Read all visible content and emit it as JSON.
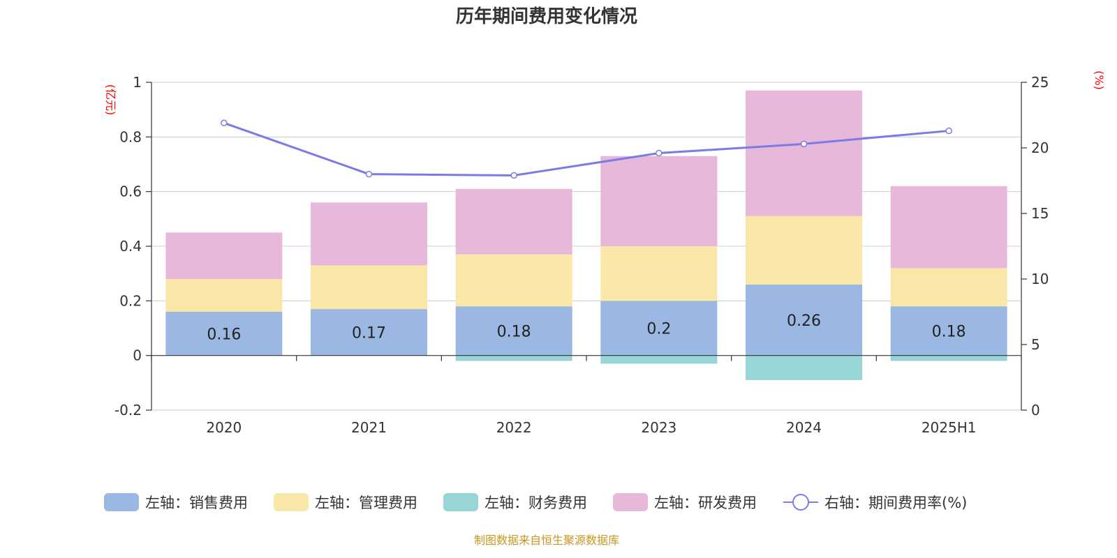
{
  "chart_data": {
    "type": "bar",
    "title": "历年期间费用变化情况",
    "categories": [
      "2020",
      "2021",
      "2022",
      "2023",
      "2024",
      "2025H1"
    ],
    "left_axis": {
      "unit": "(亿元)",
      "ylim": [
        -0.2,
        1
      ],
      "ticks": [
        "-0.2",
        "0",
        "0.2",
        "0.4",
        "0.6",
        "0.8",
        "1"
      ]
    },
    "right_axis": {
      "unit": "(%)",
      "ylim": [
        0,
        25
      ],
      "ticks": [
        "0",
        "5",
        "10",
        "15",
        "20",
        "25"
      ]
    },
    "series": [
      {
        "name": "左轴：销售费用",
        "type": "bar",
        "color": "#9bb8e2",
        "values": [
          0.16,
          0.17,
          0.18,
          0.2,
          0.26,
          0.18
        ],
        "labels": [
          "0.16",
          "0.17",
          "0.18",
          "0.2",
          "0.26",
          "0.18"
        ]
      },
      {
        "name": "左轴：管理费用",
        "type": "bar",
        "color": "#f9e7a8",
        "values": [
          0.12,
          0.16,
          0.19,
          0.2,
          0.25,
          0.14
        ]
      },
      {
        "name": "左轴：财务费用",
        "type": "bar",
        "color": "#97d5d6",
        "values": [
          0,
          0,
          -0.02,
          -0.03,
          -0.09,
          -0.02
        ]
      },
      {
        "name": "左轴：研发费用",
        "type": "bar",
        "color": "#e8b8da",
        "values": [
          0.17,
          0.23,
          0.24,
          0.33,
          0.46,
          0.3
        ]
      },
      {
        "name": "右轴：期间费用率(%)",
        "type": "line",
        "axis": "right",
        "color": "#7b7be6",
        "values": [
          21.9,
          18.0,
          17.9,
          19.6,
          20.3,
          21.3
        ]
      }
    ],
    "grid": true,
    "legend_position": "bottom"
  },
  "source": "制图数据来自恒生聚源数据库"
}
